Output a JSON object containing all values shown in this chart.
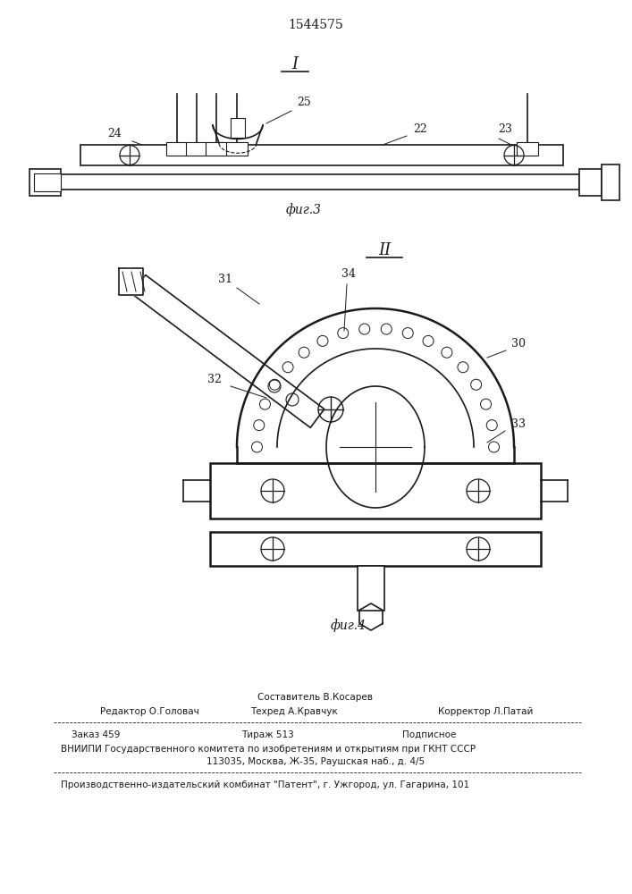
{
  "patent_number": "1544575",
  "fig3_label": "I",
  "fig4_label": "II",
  "fig3_caption": "фиг.3",
  "fig4_caption": "фиг.4",
  "bg_color": "#ffffff",
  "line_color": "#1a1a1a",
  "footer_line1_top": "Составитель В.Косарев",
  "footer_line1_left": "Редактор О.Головач",
  "footer_line1_center": "Техред А.Кравчук",
  "footer_line1_right": "Корректор Л.Патай",
  "footer_line2_left": "Заказ 459",
  "footer_line2_center": "Тираж 513",
  "footer_line2_right": "Подписное",
  "footer_line3": "ВНИИПИ Государственного комитета по изобретениям и открытиям при ГКНТ СССР",
  "footer_line4": "113035, Москва, Ж-35, Раушская наб., д. 4/5",
  "footer_line5": "Производственно-издательский комбинат \"Патент\", г. Ужгород, ул. Гагарина, 101"
}
